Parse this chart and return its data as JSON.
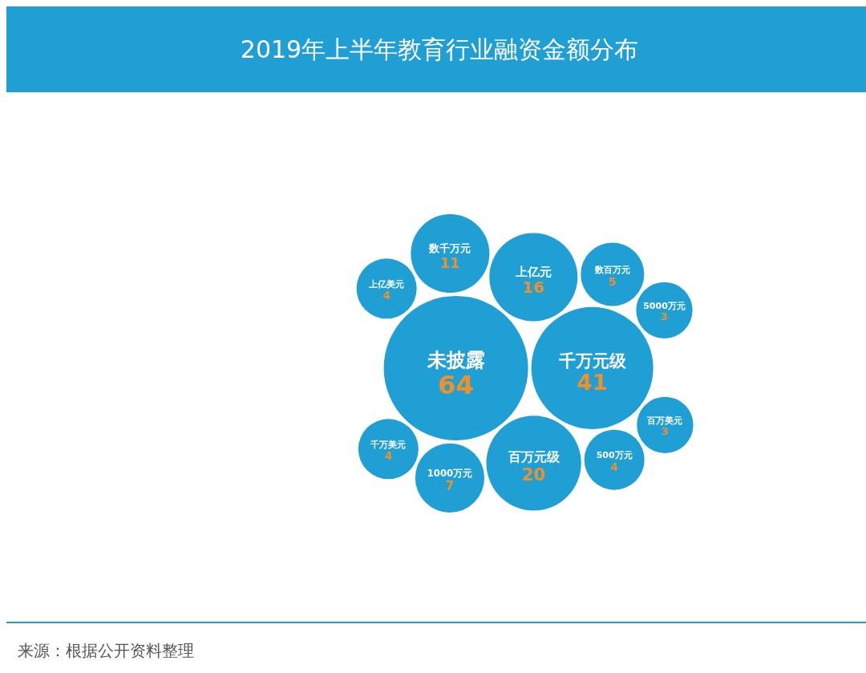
{
  "chart_data": {
    "type": "other",
    "title": "2019年上半年教育行业融资金额分布",
    "categories": [
      "未披露",
      "千万元级",
      "百万元级",
      "上亿元",
      "数千万元",
      "1000万元",
      "数百万元",
      "500万元",
      "上亿美元",
      "千万美元",
      "5000万元",
      "百万美元"
    ],
    "values": [
      64,
      41,
      20,
      16,
      11,
      7,
      5,
      4,
      4,
      4,
      3,
      3
    ],
    "color": "#1f9fd4",
    "data_labels": true,
    "annotations": [
      "来源：根据公开资料整理"
    ]
  }
}
